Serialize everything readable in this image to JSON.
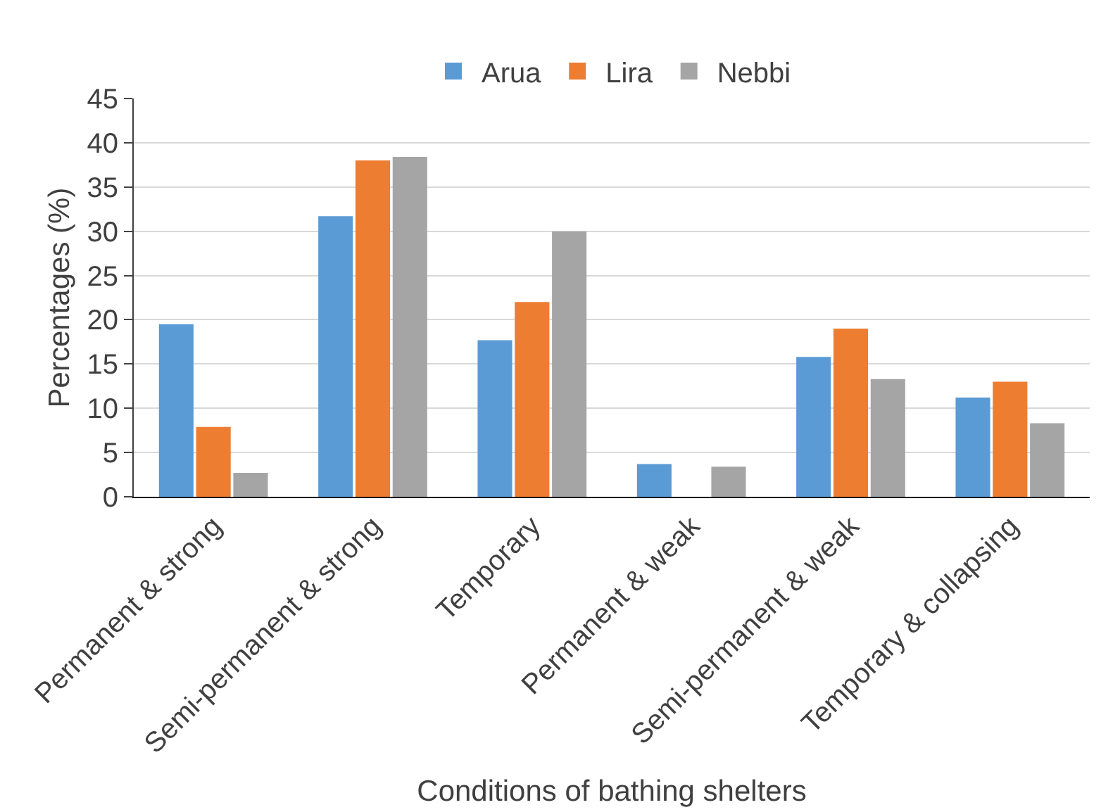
{
  "chart_data": {
    "type": "bar",
    "xlabel": "Conditions of bathing shelters",
    "ylabel": "Percentages (%)",
    "categories": [
      "Permanent & strong",
      "Semi-permanent & strong",
      "Temporary",
      "Permanent & weak",
      "Semi-permanent & weak",
      "Temporary & collapsing"
    ],
    "series": [
      {
        "name": "Arua",
        "color": "#5b9bd5",
        "values": [
          19.5,
          31.7,
          17.7,
          3.7,
          15.8,
          11.2
        ]
      },
      {
        "name": "Lira",
        "color": "#ed7d31",
        "values": [
          7.9,
          38.0,
          22.0,
          0,
          19.0,
          13.0
        ]
      },
      {
        "name": "Nebbi",
        "color": "#a5a5a5",
        "values": [
          2.7,
          38.4,
          30.0,
          3.4,
          13.3,
          8.3
        ]
      }
    ],
    "ylim": [
      0,
      45
    ],
    "yticks": [
      0,
      5,
      10,
      15,
      20,
      25,
      30,
      35,
      40,
      45
    ],
    "grid": "y",
    "legend": "top"
  }
}
